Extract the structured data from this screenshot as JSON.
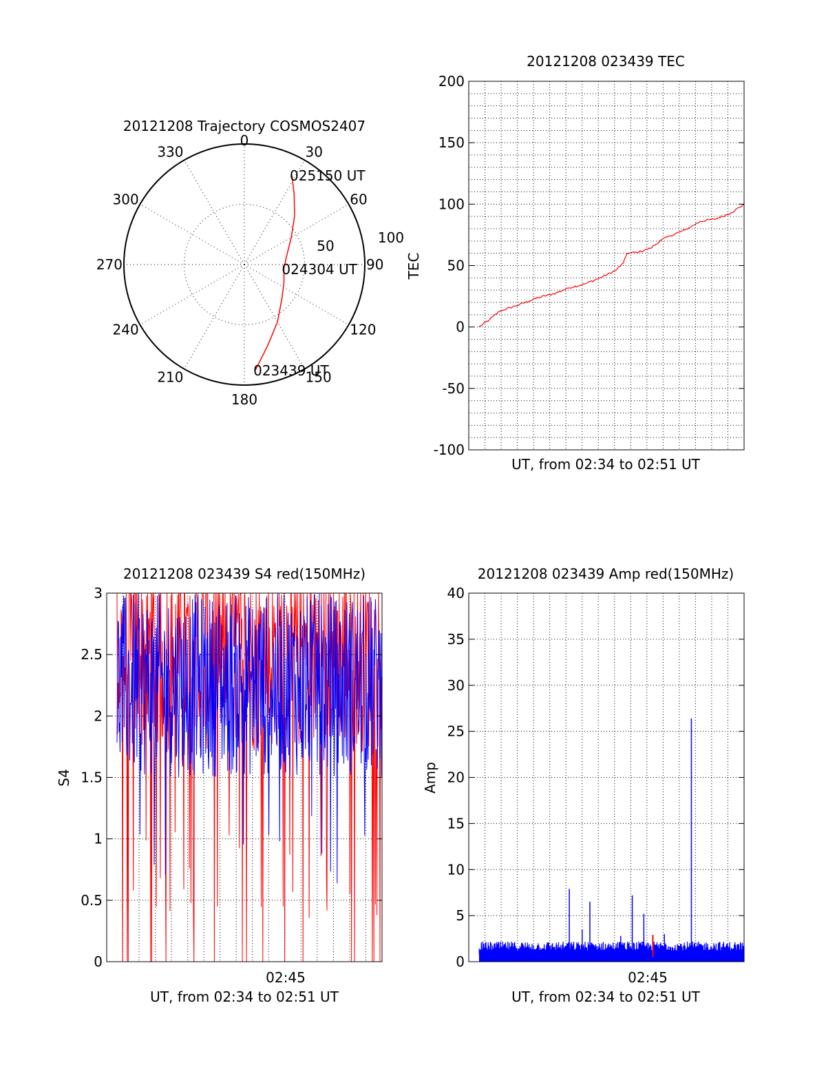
{
  "chart_data": [
    {
      "type": "polar",
      "title": "20121208 Trajectory COSMOS2407",
      "angle_labels": [
        "0",
        "30",
        "60",
        "90",
        "120",
        "150",
        "180",
        "210",
        "240",
        "270",
        "300",
        "330"
      ],
      "radial_labels": [
        "50",
        "100"
      ],
      "rlim": [
        0,
        100
      ],
      "grid": true,
      "series": [
        {
          "color": "#ff0000",
          "points": [
            {
              "az": 174,
              "r": 88
            },
            {
              "az": 164,
              "r": 70
            },
            {
              "az": 150,
              "r": 55
            },
            {
              "az": 132,
              "r": 42
            },
            {
              "az": 114,
              "r": 36
            },
            {
              "az": 96,
              "r": 33
            },
            {
              "az": 78,
              "r": 36
            },
            {
              "az": 60,
              "r": 45
            },
            {
              "az": 46,
              "r": 58
            },
            {
              "az": 35,
              "r": 72
            },
            {
              "az": 28,
              "r": 84
            }
          ]
        }
      ],
      "annotations": [
        {
          "text": "025150 UT",
          "az": 28,
          "r": 84
        },
        {
          "text": "024304 UT",
          "az": 96,
          "r": 33
        },
        {
          "text": "023439 UT",
          "az": 174,
          "r": 88
        }
      ]
    },
    {
      "type": "line",
      "title": "20121208 023439 TEC",
      "xlabel": "UT, from 02:34 to 02:51 UT",
      "ylabel": "TEC",
      "xlim": [
        "02:34:39",
        "02:51:50"
      ],
      "ylim": [
        -100,
        200
      ],
      "yticks": [
        -100,
        -50,
        0,
        50,
        100,
        150,
        200
      ],
      "grid": true,
      "series": [
        {
          "color": "#ff0000",
          "x": [
            "02:34:39",
            "02:35:20",
            "02:36:00",
            "02:37:00",
            "02:38:30",
            "02:39:30",
            "02:40:30",
            "02:41:30",
            "02:42:30",
            "02:43:30",
            "02:44:00",
            "02:44:15",
            "02:45:00",
            "02:45:45",
            "02:46:30",
            "02:47:00",
            "02:48:00",
            "02:49:00",
            "02:50:00",
            "02:51:00",
            "02:51:50"
          ],
          "y": [
            0,
            6,
            13,
            17,
            24,
            27,
            32,
            35,
            40,
            46,
            52,
            60,
            61,
            64,
            71,
            74,
            79,
            86,
            88,
            93,
            100
          ]
        }
      ]
    },
    {
      "type": "line",
      "title": "20121208 023439 S4 red(150MHz)",
      "xlabel": "UT, from 02:34 to 02:51 UT",
      "ylabel": "S4",
      "xticks": [
        "02:45"
      ],
      "xlim": [
        "02:34:39",
        "02:51:50"
      ],
      "ylim": [
        0,
        3
      ],
      "yticks": [
        0,
        0.5,
        1,
        1.5,
        2,
        2.5,
        3
      ],
      "grid": true,
      "series": [
        {
          "color": "#ff0000",
          "style": "dense noisy signal, clipped at 3, with drops toward 0"
        },
        {
          "color": "#0000ff",
          "style": "dense noisy signal between about 0.6 and 3"
        }
      ]
    },
    {
      "type": "line",
      "title": "20121208 023439 Amp red(150MHz)",
      "xlabel": "UT, from 02:34 to 02:51 UT",
      "ylabel": "Amp",
      "xticks": [
        "02:45"
      ],
      "xlim": [
        "02:34:39",
        "02:51:50"
      ],
      "ylim": [
        0,
        40
      ],
      "yticks": [
        0,
        5,
        10,
        15,
        20,
        25,
        30,
        35,
        40
      ],
      "grid": true,
      "series": [
        {
          "color": "#0000ff",
          "style": "noise floor about 0.5 to 2.2 with spikes",
          "spikes": [
            {
              "x": "02:40:30",
              "y": 7.9
            },
            {
              "x": "02:41:20",
              "y": 3.5
            },
            {
              "x": "02:41:50",
              "y": 6.5
            },
            {
              "x": "02:43:50",
              "y": 2.8
            },
            {
              "x": "02:44:35",
              "y": 7.2
            },
            {
              "x": "02:45:20",
              "y": 5.2
            },
            {
              "x": "02:46:40",
              "y": 3.0
            },
            {
              "x": "02:48:25",
              "y": 26.4
            }
          ]
        },
        {
          "color": "#ff0000",
          "spikes": [
            {
              "x": "02:45:55",
              "y": 2.9
            }
          ]
        }
      ]
    }
  ]
}
